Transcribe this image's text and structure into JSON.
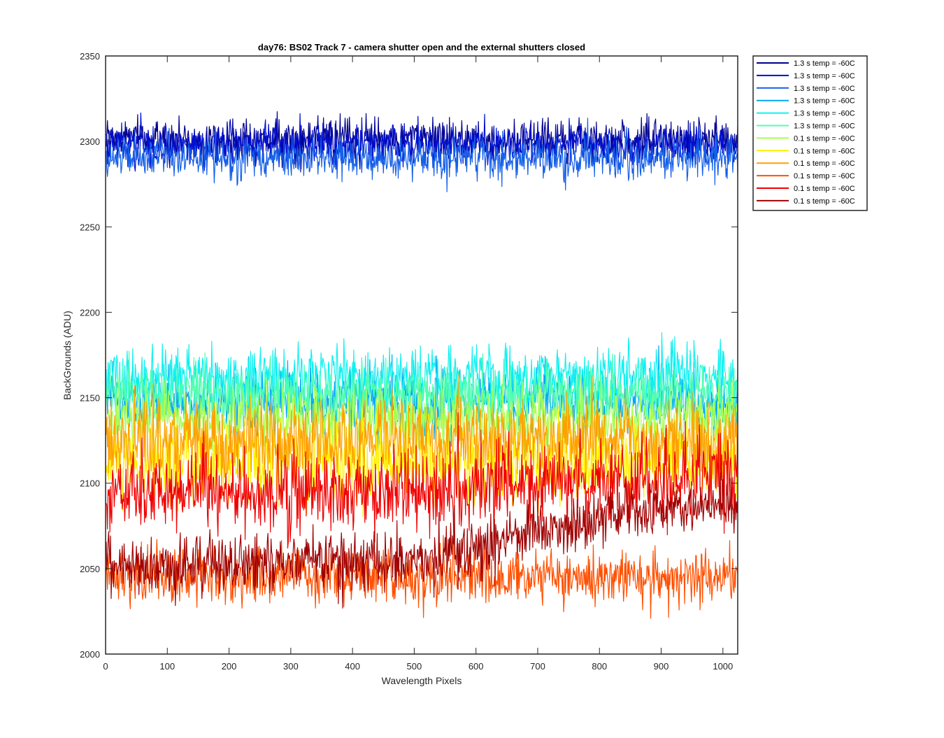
{
  "chart_data": {
    "type": "line",
    "title": "day76: BS02  Track 7 - camera shutter open and the external shutters closed",
    "xlabel": "Wavelength Pixels",
    "ylabel": "BackGrounds (ADU)",
    "xlim": [
      0,
      1024
    ],
    "ylim": [
      2000,
      2350
    ],
    "xticks": [
      0,
      100,
      200,
      300,
      400,
      500,
      600,
      700,
      800,
      900,
      1000
    ],
    "yticks": [
      2000,
      2050,
      2100,
      2150,
      2200,
      2250,
      2300,
      2350
    ],
    "grid": false,
    "legend_position": "outside-top-right",
    "n_points": 1024,
    "series": [
      {
        "name": "1.3 s temp = -60C",
        "color": "#00008F",
        "mean": 2301,
        "noise": 6,
        "trend": [
          [
            0,
            0
          ],
          [
            1024,
            0
          ]
        ]
      },
      {
        "name": "1.3 s temp = -60C",
        "color": "#0010D0",
        "mean": 2298,
        "noise": 6,
        "trend": [
          [
            0,
            0
          ],
          [
            1024,
            0
          ]
        ]
      },
      {
        "name": "1.3 s temp = -60C",
        "color": "#1560E8",
        "mean": 2290,
        "noise": 6,
        "trend": [
          [
            0,
            0
          ],
          [
            1024,
            0
          ]
        ]
      },
      {
        "name": "1.3 s temp = -60C",
        "color": "#00A8F0",
        "mean": 2148,
        "noise": 9,
        "trend": [
          [
            0,
            0
          ],
          [
            1024,
            0
          ]
        ]
      },
      {
        "name": "1.3 s temp = -60C",
        "color": "#10F0F0",
        "mean": 2163,
        "noise": 9,
        "trend": [
          [
            0,
            0
          ],
          [
            1024,
            0
          ]
        ]
      },
      {
        "name": "1.3 s temp = -60C",
        "color": "#50FFB0",
        "mean": 2153,
        "noise": 8,
        "trend": [
          [
            0,
            0
          ],
          [
            1024,
            0
          ]
        ]
      },
      {
        "name": "0.1 s temp = -60C",
        "color": "#A8FF50",
        "mean": 2138,
        "noise": 9,
        "trend": [
          [
            0,
            0
          ],
          [
            1024,
            0
          ]
        ]
      },
      {
        "name": "0.1 s temp = -60C",
        "color": "#FFF000",
        "mean": 2113,
        "noise": 12,
        "trend": [
          [
            0,
            0
          ],
          [
            1024,
            0
          ]
        ]
      },
      {
        "name": "0.1 s temp = -60C",
        "color": "#FFA000",
        "mean": 2125,
        "noise": 12,
        "trend": [
          [
            0,
            0
          ],
          [
            1024,
            0
          ]
        ]
      },
      {
        "name": "0.1 s temp = -60C",
        "color": "#FF5000",
        "mean": 2045,
        "noise": 8,
        "trend": [
          [
            0,
            0
          ],
          [
            1024,
            0
          ]
        ]
      },
      {
        "name": "0.1 s temp = -60C",
        "color": "#F00000",
        "mean": 2095,
        "noise": 12,
        "trend": [
          [
            0,
            0
          ],
          [
            350,
            -2
          ],
          [
            550,
            3
          ],
          [
            1024,
            8
          ]
        ]
      },
      {
        "name": "0.1 s temp = -60C",
        "color": "#A00000",
        "mean": 2050,
        "noise": 8,
        "trend": [
          [
            0,
            0
          ],
          [
            300,
            5
          ],
          [
            500,
            5
          ],
          [
            700,
            22
          ],
          [
            850,
            32
          ],
          [
            1024,
            40
          ]
        ]
      }
    ]
  }
}
